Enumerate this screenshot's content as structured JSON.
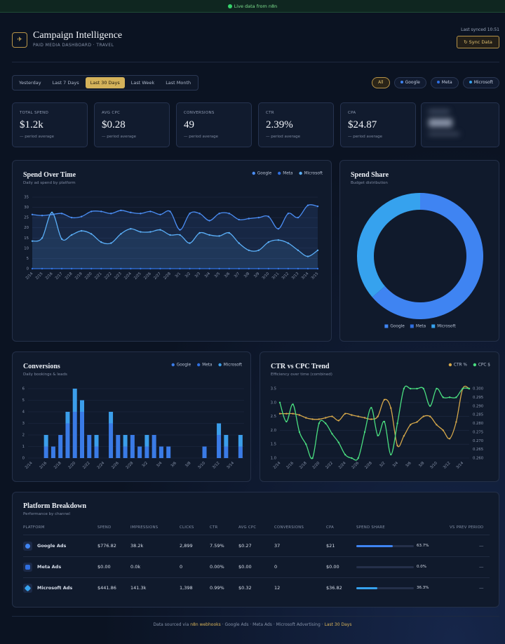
{
  "banner": "Live data from n8n",
  "header": {
    "title": "Campaign Intelligence",
    "subtitle": "PAID MEDIA DASHBOARD · TRAVEL",
    "last_synced": "Last synced 10:51",
    "sync_button": "Sync Data"
  },
  "date_filter": {
    "options": [
      "Yesterday",
      "Last 7 Days",
      "Last 30 Days",
      "Last Week",
      "Last Month"
    ],
    "active": 2
  },
  "platform_filter": {
    "options": [
      "All",
      "Google",
      "Meta",
      "Microsoft"
    ],
    "active": 0
  },
  "kpis": [
    {
      "label": "TOTAL SPEND",
      "value": "$1.2k",
      "note": "— period average"
    },
    {
      "label": "AVG CPC",
      "value": "$0.28",
      "note": "— period average"
    },
    {
      "label": "CONVERSIONS",
      "value": "49",
      "note": "— period average"
    },
    {
      "label": "CTR",
      "value": "2.39%",
      "note": "— period average"
    },
    {
      "label": "CPA",
      "value": "$24.87",
      "note": "— period average"
    }
  ],
  "chart_data": [
    {
      "type": "line",
      "title": "Spend Over Time",
      "subtitle": "Daily ad spend by platform",
      "categories": [
        "2/14",
        "2/15",
        "2/16",
        "2/17",
        "2/18",
        "2/19",
        "2/20",
        "2/21",
        "2/22",
        "2/23",
        "2/24",
        "2/25",
        "2/26",
        "2/27",
        "2/28",
        "3/1",
        "3/2",
        "3/3",
        "3/4",
        "3/5",
        "3/6",
        "3/7",
        "3/8",
        "3/9",
        "3/10",
        "3/11",
        "3/12",
        "3/13",
        "3/14",
        "3/15"
      ],
      "series": [
        {
          "name": "Google",
          "color": "#4b8ef5",
          "values": [
            26.5,
            26,
            26.5,
            27,
            25,
            25.5,
            28,
            28,
            27,
            28.5,
            27.5,
            27,
            28,
            26.5,
            28,
            19,
            27,
            27,
            23.5,
            27,
            27,
            24,
            24.5,
            25,
            25.5,
            19.5,
            27,
            25,
            31,
            30.5
          ]
        },
        {
          "name": "Meta",
          "color": "#2f6fe0",
          "values": [
            0,
            0,
            0,
            0,
            0,
            0,
            0,
            0,
            0,
            0,
            0,
            0,
            0,
            0,
            0,
            0,
            0,
            0,
            0,
            0,
            0,
            0,
            0,
            0,
            0,
            0,
            0,
            0,
            0,
            0
          ]
        },
        {
          "name": "Microsoft",
          "color": "#5aaef7",
          "values": [
            13.5,
            15,
            27.5,
            14.5,
            16.5,
            18.5,
            17,
            13,
            12.5,
            17,
            19.5,
            18,
            18,
            19,
            16.5,
            16.5,
            12.5,
            17.5,
            16.5,
            16,
            17.5,
            12.5,
            9,
            9,
            13,
            14,
            12.5,
            9,
            6,
            9
          ]
        }
      ],
      "ylim": [
        0,
        35
      ],
      "yticks": [
        0,
        5,
        10,
        15,
        20,
        25,
        30,
        35
      ],
      "grid": true,
      "fill": true,
      "legend": "top-right"
    },
    {
      "type": "doughnut",
      "title": "Spend Share",
      "subtitle": "Budget distribution",
      "categories": [
        "Google",
        "Meta",
        "Microsoft"
      ],
      "values": [
        63.7,
        0,
        36.3
      ],
      "colors": [
        "#3f84f2",
        "#2f6fe0",
        "#36a2ee"
      ],
      "legend": "bottom"
    },
    {
      "type": "bar",
      "stacked": true,
      "title": "Conversions",
      "subtitle": "Daily bookings & leads",
      "categories": [
        "2/14",
        null,
        "2/16",
        null,
        "2/18",
        null,
        "2/20",
        null,
        "2/22",
        null,
        "2/24",
        null,
        "2/26",
        null,
        "2/28",
        null,
        "3/2",
        null,
        "3/4",
        null,
        "3/6",
        null,
        "3/8",
        null,
        "3/10",
        null,
        "3/12",
        null,
        "3/14",
        null
      ],
      "series": [
        {
          "name": "Google",
          "color": "#3a7be6",
          "values": [
            0,
            0,
            1,
            1,
            2,
            3,
            4,
            4,
            2,
            1,
            0,
            3,
            2,
            1,
            2,
            1,
            1,
            2,
            1,
            1,
            0,
            0,
            0,
            0,
            1,
            0,
            2,
            1,
            0,
            1
          ]
        },
        {
          "name": "Meta",
          "color": "#2f6fe0",
          "values": [
            0,
            0,
            0,
            0,
            0,
            0,
            0,
            0,
            0,
            0,
            0,
            0,
            0,
            0,
            0,
            0,
            0,
            0,
            0,
            0,
            0,
            0,
            0,
            0,
            0,
            0,
            0,
            0,
            0,
            0
          ]
        },
        {
          "name": "Microsoft",
          "color": "#3b9eea",
          "values": [
            0,
            0,
            1,
            0,
            0,
            1,
            2,
            1,
            0,
            1,
            0,
            1,
            0,
            1,
            0,
            0,
            1,
            0,
            0,
            0,
            0,
            0,
            0,
            0,
            0,
            0,
            1,
            1,
            0,
            1
          ]
        }
      ],
      "ylim": [
        0,
        6
      ],
      "yticks": [
        0,
        1,
        2,
        3,
        4,
        5,
        6
      ],
      "grid": true,
      "legend": "top-right"
    },
    {
      "type": "line",
      "title": "CTR vs CPC Trend",
      "subtitle": "Efficiency over time (combined)",
      "categories": [
        "2/14",
        null,
        "2/16",
        null,
        "2/18",
        null,
        "2/20",
        null,
        "2/22",
        null,
        "2/24",
        null,
        "2/26",
        null,
        "2/28",
        null,
        "3/2",
        null,
        "3/4",
        null,
        "3/6",
        null,
        "3/8",
        null,
        "3/10",
        null,
        "3/12",
        null,
        "3/14",
        null
      ],
      "series": [
        {
          "name": "CTR %",
          "color": "#d6a84a",
          "values": [
            2.6,
            2.6,
            2.6,
            2.55,
            2.45,
            2.4,
            2.4,
            2.45,
            2.5,
            2.35,
            2.6,
            2.55,
            2.5,
            2.45,
            2.4,
            2.5,
            3.1,
            2.8,
            1.45,
            1.8,
            2.2,
            2.3,
            2.5,
            2.5,
            2.2,
            2.0,
            1.7,
            2.3,
            3.5,
            3.5
          ]
        },
        {
          "name": "CPC $",
          "color": "#4ade80",
          "axis": "y2",
          "values": [
            0.292,
            0.281,
            0.291,
            0.275,
            0.268,
            0.26,
            0.28,
            0.28,
            0.274,
            0.269,
            0.262,
            0.26,
            0.26,
            0.275,
            0.289,
            0.273,
            0.281,
            0.262,
            0.28,
            0.3,
            0.3,
            0.3,
            0.3,
            0.29,
            0.3,
            0.295,
            0.295,
            0.295,
            0.3,
            0.3
          ]
        }
      ],
      "ylim": [
        1,
        3.5
      ],
      "yticks": [
        {
          "value": 1,
          "label": "1.0"
        },
        1.5,
        {
          "value": 2,
          "label": "2.0"
        },
        2.5,
        {
          "value": 3,
          "label": "3.0"
        },
        3.5
      ],
      "y2lim": [
        0.26,
        0.3
      ],
      "y2ticks": [
        {
          "value": 0.26,
          "label": "0.260"
        },
        0.265,
        {
          "value": 0.27,
          "label": "0.270"
        },
        0.275,
        {
          "value": 0.28,
          "label": "0.280"
        },
        0.285,
        {
          "value": 0.29,
          "label": "0.290"
        },
        0.295,
        {
          "value": 0.3,
          "label": "0.300"
        }
      ],
      "grid": true,
      "legend": "top-right"
    }
  ],
  "table": {
    "title": "Platform Breakdown",
    "subtitle": "Performance by channel",
    "columns": [
      "PLATFORM",
      "SPEND",
      "IMPRESSIONS",
      "CLICKS",
      "CTR",
      "AVG CPC",
      "CONVERSIONS",
      "CPA",
      "SPEND SHARE",
      "VS PREV PERIOD"
    ],
    "rows": [
      {
        "platform": "Google Ads",
        "cells": [
          "$776.82",
          "38.2k",
          "2,899",
          "7.59%",
          "$0.27",
          "37",
          "$21"
        ],
        "share": 63.7,
        "share_label": "63.7%",
        "change": "—"
      },
      {
        "platform": "Meta Ads",
        "cells": [
          "$0.00",
          "0.0k",
          "0",
          "0.00%",
          "$0.00",
          "0",
          "$0.00"
        ],
        "share": 0,
        "share_label": "0.0%",
        "change": "—"
      },
      {
        "platform": "Microsoft Ads",
        "cells": [
          "$441.86",
          "141.3k",
          "1,398",
          "0.99%",
          "$0.32",
          "12",
          "$36.82"
        ],
        "share": 36.3,
        "share_label": "36.3%",
        "change": "—"
      }
    ]
  },
  "footer": {
    "prefix": "Data sourced via",
    "source": "n8n webhooks",
    "platforms": "· Google Ads · Meta Ads · Microsoft Advertising ·",
    "period": "Last 30 Days"
  }
}
